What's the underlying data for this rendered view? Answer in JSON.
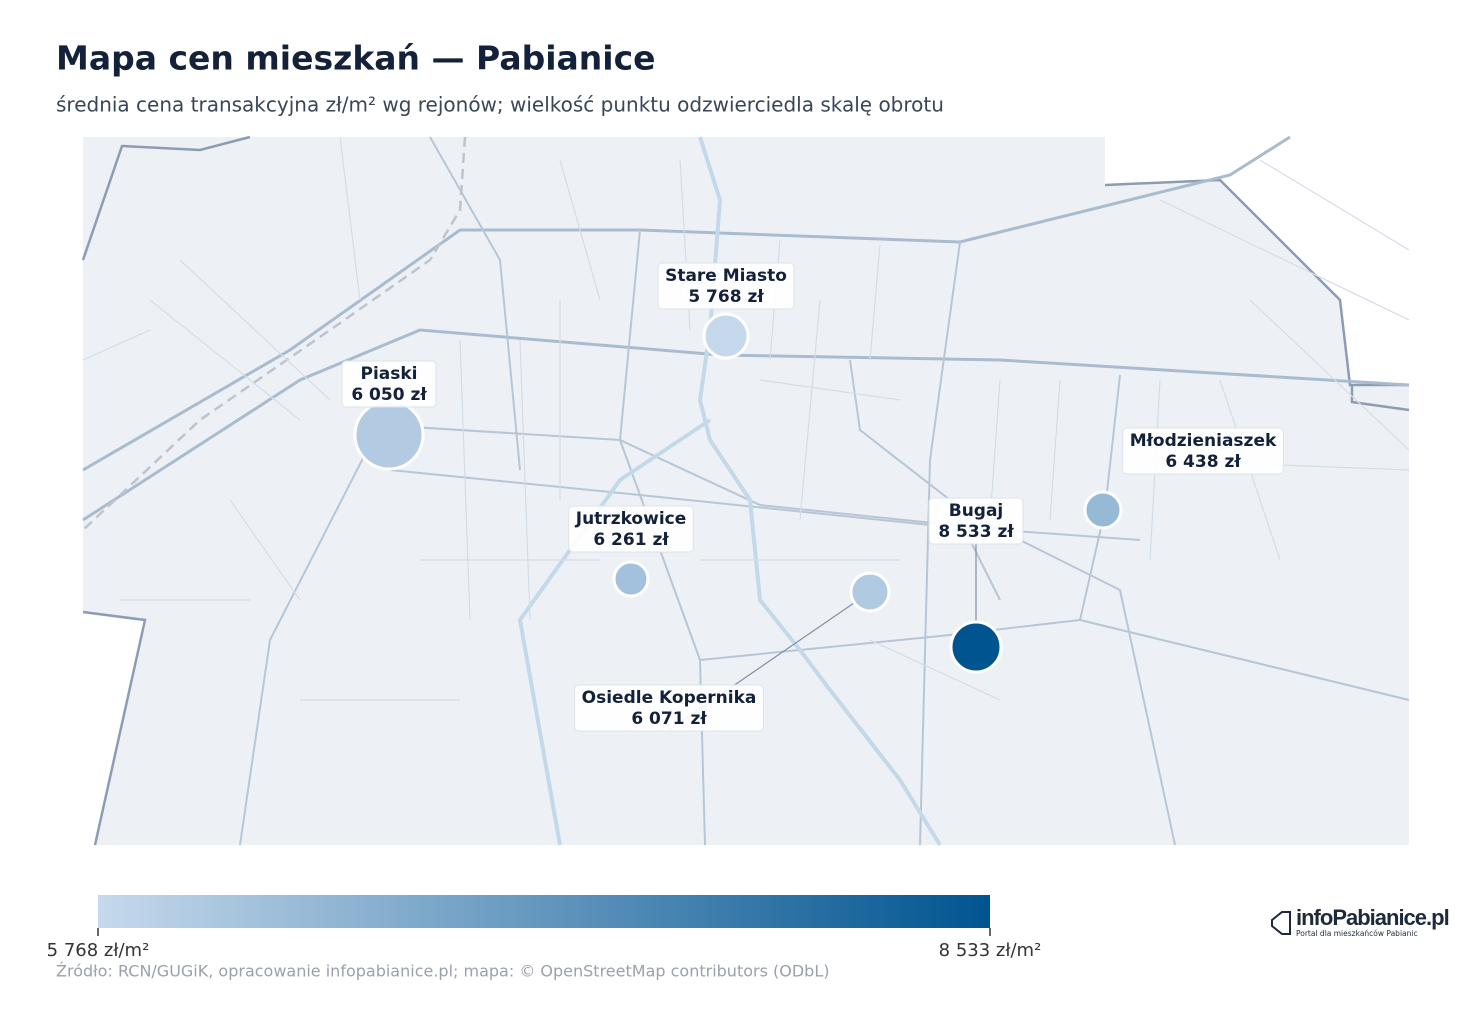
{
  "header": {
    "title": "Mapa cen mieszkań — Pabianice",
    "subtitle": "średnia cena transakcyjna zł/m² wg rejonów; wielkość punktu odzwierciedla skalę obrotu"
  },
  "map": {
    "type": "bubble-map",
    "points": [
      {
        "name": "Stare Miasto",
        "value": 5768,
        "value_label": "5 768 zł"
      },
      {
        "name": "Piaski",
        "value": 6050,
        "value_label": "6 050 zł"
      },
      {
        "name": "Jutrzkowice",
        "value": 6261,
        "value_label": "6 261 zł"
      },
      {
        "name": "Osiedle Kopernika",
        "value": 6071,
        "value_label": "6 071 zł"
      },
      {
        "name": "Bugaj",
        "value": 8533,
        "value_label": "8 533 zł"
      },
      {
        "name": "Młodzieniaszek",
        "value": 6438,
        "value_label": "6 438 zł"
      }
    ],
    "colorbar": {
      "lim": [
        5768,
        8533
      ],
      "colors": [
        "#c6d9ec",
        "#005490"
      ],
      "ticks": [
        {
          "value": 5768,
          "label": "5 768 zł/m²"
        },
        {
          "value": 8533,
          "label": "8 533 zł/m²"
        }
      ]
    }
  },
  "footer": {
    "source": "Źródło: RCN/GUGiK, opracowanie infopabianice.pl; mapa: © OpenStreetMap contributors (ODbL)",
    "logo": "infoPabianice.pl",
    "logo_tagline": "Portal dla mieszkańców Pabianic"
  }
}
